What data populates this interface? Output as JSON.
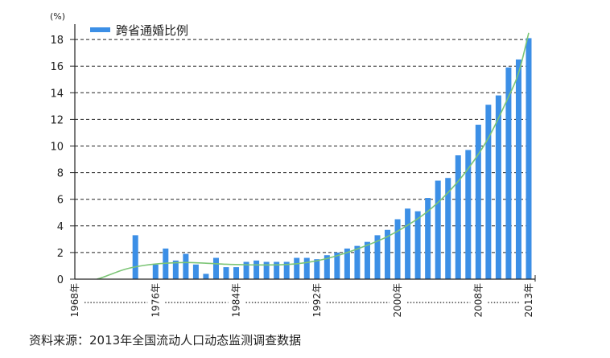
{
  "chart_data": {
    "type": "bar",
    "unit_label": "(%)",
    "legend": {
      "label": "跨省通婚比例",
      "placement": "top-left"
    },
    "y_ticks": [
      "0",
      "2",
      "4",
      "6",
      "8",
      "10",
      "12",
      "14",
      "16",
      "18"
    ],
    "ylim": [
      0,
      19
    ],
    "grid": "dashed-horizontal",
    "x_tick_labels": [
      "1968年",
      "1976年",
      "1984年",
      "1992年",
      "2000年",
      "2008年",
      "2013年"
    ],
    "x_tick_years": [
      1968,
      1976,
      1984,
      1992,
      2000,
      2008,
      2013
    ],
    "years": [
      1968,
      1969,
      1970,
      1971,
      1972,
      1973,
      1974,
      1975,
      1976,
      1977,
      1978,
      1979,
      1980,
      1981,
      1982,
      1983,
      1984,
      1985,
      1986,
      1987,
      1988,
      1989,
      1990,
      1991,
      1992,
      1993,
      1994,
      1995,
      1996,
      1997,
      1998,
      1999,
      2000,
      2001,
      2002,
      2003,
      2004,
      2005,
      2006,
      2007,
      2008,
      2009,
      2010,
      2011,
      2012,
      2013
    ],
    "values": [
      0,
      0,
      0,
      0,
      0,
      0,
      3.3,
      0,
      1.1,
      2.3,
      1.4,
      1.9,
      1.1,
      0.4,
      1.6,
      0.9,
      0.9,
      1.3,
      1.4,
      1.3,
      1.3,
      1.3,
      1.6,
      1.6,
      1.5,
      1.8,
      2.0,
      2.3,
      2.5,
      2.8,
      3.3,
      3.7,
      4.5,
      5.3,
      5.1,
      6.1,
      7.4,
      7.6,
      9.3,
      9.7,
      11.6,
      13.1,
      13.8,
      15.9,
      16.5,
      18.1
    ],
    "trendline": {
      "color": "#7cc576",
      "points": [
        [
          1970.2,
          0
        ],
        [
          1971,
          0.2
        ],
        [
          1973,
          0.75
        ],
        [
          1975,
          1.05
        ],
        [
          1977,
          1.2
        ],
        [
          1979,
          1.25
        ],
        [
          1981,
          1.2
        ],
        [
          1983,
          1.12
        ],
        [
          1985,
          1.08
        ],
        [
          1987,
          1.07
        ],
        [
          1989,
          1.1
        ],
        [
          1991,
          1.25
        ],
        [
          1993,
          1.55
        ],
        [
          1995,
          2.0
        ],
        [
          1997,
          2.55
        ],
        [
          1999,
          3.2
        ],
        [
          2001,
          4.05
        ],
        [
          2003,
          5.1
        ],
        [
          2005,
          6.5
        ],
        [
          2007,
          8.3
        ],
        [
          2009,
          10.6
        ],
        [
          2011,
          13.7
        ],
        [
          2012,
          15.5
        ],
        [
          2013,
          18.5
        ]
      ]
    },
    "bar_color": "#3c8fe6",
    "source": "资料来源：2013年全国流动人口动态监测调查数据"
  }
}
